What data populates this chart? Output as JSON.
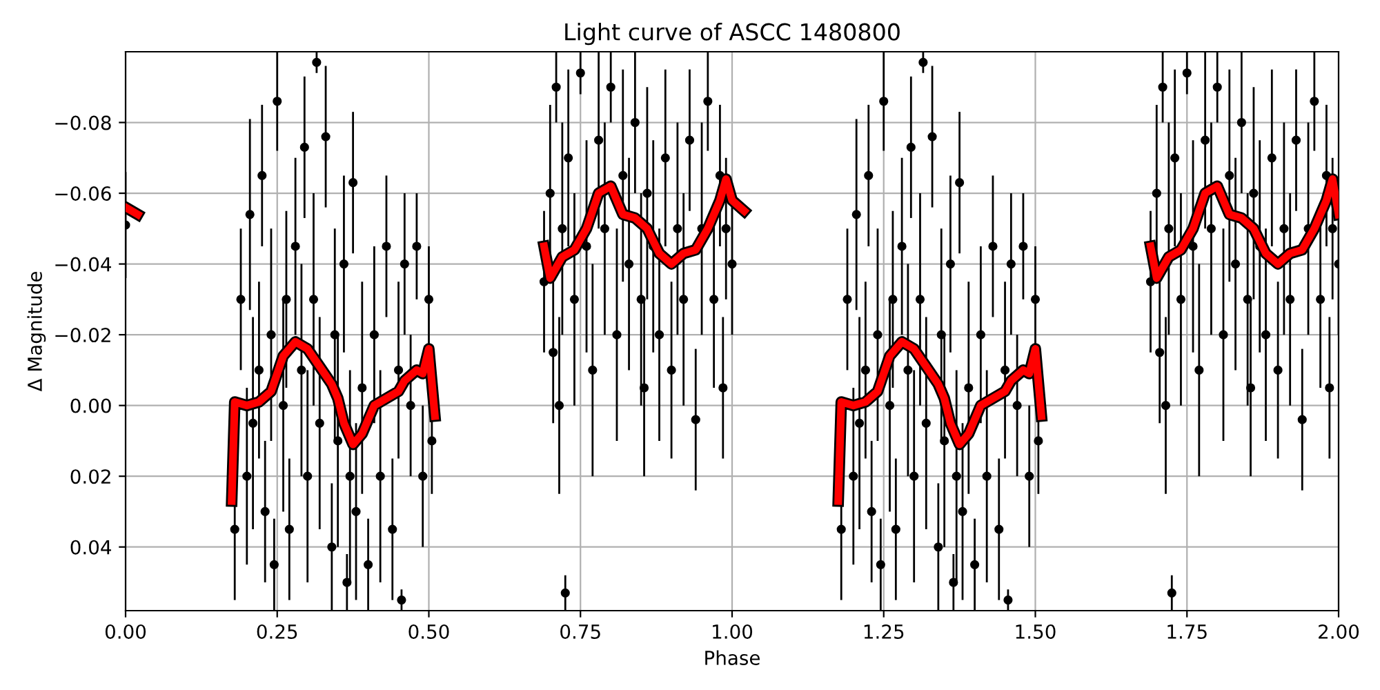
{
  "chart_data": {
    "type": "scatter",
    "title": "Light curve of ASCC 1480800",
    "xlabel": "Phase",
    "ylabel": "Δ Magnitude",
    "xlim": [
      0,
      2
    ],
    "xticks": [
      {
        "value": 0,
        "label": "0.00"
      },
      {
        "value": 0.25,
        "label": "0.25"
      },
      {
        "value": 0.5,
        "label": "0.50"
      },
      {
        "value": 0.75,
        "label": "0.75"
      },
      {
        "value": 1,
        "label": "1.00"
      },
      {
        "value": 1.25,
        "label": "1.25"
      },
      {
        "value": 1.5,
        "label": "1.50"
      },
      {
        "value": 1.75,
        "label": "1.75"
      },
      {
        "value": 2,
        "label": "2.00"
      }
    ],
    "ylim": [
      0.058,
      -0.1
    ],
    "yticks": [
      {
        "value": -0.08,
        "label": "−0.08"
      },
      {
        "value": -0.06,
        "label": "−0.06"
      },
      {
        "value": -0.04,
        "label": "−0.04"
      },
      {
        "value": -0.02,
        "label": "−0.02"
      },
      {
        "value": 0,
        "label": "0.00"
      },
      {
        "value": 0.02,
        "label": "0.02"
      },
      {
        "value": 0.04,
        "label": "0.04"
      }
    ],
    "grid": true,
    "series": [
      {
        "color": "#000000",
        "marker": "circle",
        "x": [
          0.0,
          0.18,
          0.19,
          0.2,
          0.205,
          0.21,
          0.22,
          0.225,
          0.23,
          0.24,
          0.245,
          0.25,
          0.26,
          0.265,
          0.27,
          0.28,
          0.29,
          0.295,
          0.3,
          0.31,
          0.315,
          0.32,
          0.33,
          0.34,
          0.345,
          0.35,
          0.36,
          0.365,
          0.37,
          0.375,
          0.38,
          0.39,
          0.4,
          0.41,
          0.42,
          0.43,
          0.44,
          0.45,
          0.455,
          0.46,
          0.47,
          0.48,
          0.49,
          0.5,
          0.505,
          0.69,
          0.7,
          0.705,
          0.71,
          0.715,
          0.72,
          0.725,
          0.73,
          0.74,
          0.75,
          0.76,
          0.77,
          0.78,
          0.79,
          0.8,
          0.81,
          0.82,
          0.83,
          0.84,
          0.85,
          0.855,
          0.86,
          0.87,
          0.88,
          0.89,
          0.9,
          0.91,
          0.92,
          0.93,
          0.94,
          0.95,
          0.96,
          0.97,
          0.98,
          0.985,
          0.99,
          1.0,
          1.18,
          1.19,
          1.2,
          1.205,
          1.21,
          1.22,
          1.225,
          1.23,
          1.24,
          1.245,
          1.25,
          1.26,
          1.265,
          1.27,
          1.28,
          1.29,
          1.295,
          1.3,
          1.31,
          1.315,
          1.32,
          1.33,
          1.34,
          1.345,
          1.35,
          1.36,
          1.365,
          1.37,
          1.375,
          1.38,
          1.39,
          1.4,
          1.41,
          1.42,
          1.43,
          1.44,
          1.45,
          1.455,
          1.46,
          1.47,
          1.48,
          1.49,
          1.5,
          1.505,
          1.69,
          1.7,
          1.705,
          1.71,
          1.715,
          1.72,
          1.725,
          1.73,
          1.74,
          1.75,
          1.76,
          1.77,
          1.78,
          1.79,
          1.8,
          1.81,
          1.82,
          1.83,
          1.84,
          1.85,
          1.855,
          1.86,
          1.87,
          1.88,
          1.89,
          1.9,
          1.91,
          1.92,
          1.93,
          1.94,
          1.95,
          1.96,
          1.97,
          1.98,
          1.985,
          1.99,
          2.0
        ],
        "values": [
          -0.051,
          0.035,
          -0.03,
          0.02,
          -0.054,
          0.005,
          -0.01,
          -0.065,
          0.03,
          -0.02,
          0.045,
          -0.086,
          0.0,
          -0.03,
          0.035,
          -0.045,
          -0.01,
          -0.073,
          0.02,
          -0.03,
          -0.097,
          0.005,
          -0.076,
          0.04,
          -0.02,
          0.01,
          -0.04,
          0.05,
          0.02,
          -0.063,
          0.03,
          -0.005,
          0.045,
          -0.02,
          0.02,
          -0.045,
          0.035,
          -0.01,
          0.055,
          -0.04,
          0.0,
          -0.045,
          0.02,
          -0.03,
          0.01,
          -0.035,
          -0.06,
          -0.015,
          -0.09,
          0.0,
          -0.05,
          0.053,
          -0.07,
          -0.03,
          -0.094,
          -0.045,
          -0.01,
          -0.075,
          -0.05,
          -0.09,
          -0.02,
          -0.065,
          -0.04,
          -0.08,
          -0.03,
          -0.005,
          -0.06,
          -0.045,
          -0.02,
          -0.07,
          -0.01,
          -0.05,
          -0.03,
          -0.075,
          0.004,
          -0.05,
          -0.086,
          -0.03,
          -0.065,
          -0.005,
          -0.05,
          -0.04,
          0.035,
          -0.03,
          0.02,
          -0.054,
          0.005,
          -0.01,
          -0.065,
          0.03,
          -0.02,
          0.045,
          -0.086,
          0.0,
          -0.03,
          0.035,
          -0.045,
          -0.01,
          -0.073,
          0.02,
          -0.03,
          -0.097,
          0.005,
          -0.076,
          0.04,
          -0.02,
          0.01,
          -0.04,
          0.05,
          0.02,
          -0.063,
          0.03,
          -0.005,
          0.045,
          -0.02,
          0.02,
          -0.045,
          0.035,
          -0.01,
          0.055,
          -0.04,
          0.0,
          -0.045,
          0.02,
          -0.03,
          0.01,
          -0.035,
          -0.06,
          -0.015,
          -0.09,
          0.0,
          -0.05,
          0.053,
          -0.07,
          -0.03,
          -0.094,
          -0.045,
          -0.01,
          -0.075,
          -0.05,
          -0.09,
          -0.02,
          -0.065,
          -0.04,
          -0.08,
          -0.03,
          -0.005,
          -0.06,
          -0.045,
          -0.02,
          -0.07,
          -0.01,
          -0.05,
          -0.03,
          -0.075,
          0.004,
          -0.05,
          -0.086,
          -0.03,
          -0.065,
          -0.005,
          -0.05,
          -0.04
        ],
        "errors": [
          0.015,
          0.02,
          0.02,
          0.025,
          0.027,
          0.03,
          0.025,
          0.02,
          0.02,
          0.03,
          0.013,
          0.014,
          0.03,
          0.025,
          0.02,
          0.025,
          0.03,
          0.02,
          0.03,
          0.03,
          0.003,
          0.03,
          0.02,
          0.018,
          0.03,
          0.03,
          0.025,
          0.008,
          0.03,
          0.02,
          0.025,
          0.03,
          0.013,
          0.025,
          0.03,
          0.02,
          0.02,
          0.025,
          0.003,
          0.02,
          0.02,
          0.015,
          0.02,
          0.015,
          0.015,
          0.02,
          0.025,
          0.02,
          0.01,
          0.025,
          0.03,
          0.005,
          0.025,
          0.03,
          0.006,
          0.03,
          0.03,
          0.025,
          0.03,
          0.01,
          0.03,
          0.03,
          0.03,
          0.02,
          0.03,
          0.025,
          0.03,
          0.03,
          0.03,
          0.025,
          0.025,
          0.03,
          0.03,
          0.02,
          0.02,
          0.03,
          0.014,
          0.025,
          0.02,
          0.02,
          0.02,
          0.02,
          0.02,
          0.02,
          0.025,
          0.027,
          0.03,
          0.025,
          0.02,
          0.02,
          0.03,
          0.013,
          0.014,
          0.03,
          0.025,
          0.02,
          0.025,
          0.03,
          0.02,
          0.03,
          0.03,
          0.003,
          0.03,
          0.02,
          0.018,
          0.03,
          0.03,
          0.025,
          0.008,
          0.03,
          0.02,
          0.025,
          0.03,
          0.013,
          0.025,
          0.03,
          0.02,
          0.02,
          0.025,
          0.003,
          0.02,
          0.02,
          0.015,
          0.02,
          0.015,
          0.015,
          0.02,
          0.025,
          0.02,
          0.01,
          0.025,
          0.03,
          0.005,
          0.025,
          0.03,
          0.006,
          0.03,
          0.03,
          0.025,
          0.03,
          0.01,
          0.03,
          0.03,
          0.03,
          0.02,
          0.03,
          0.025,
          0.03,
          0.03,
          0.03,
          0.025,
          0.025,
          0.03,
          0.03,
          0.02,
          0.02,
          0.03,
          0.014,
          0.025,
          0.02,
          0.02,
          0.02,
          0.02
        ]
      },
      {
        "type": "line",
        "color": "#ff0000",
        "line_style": "solid",
        "marker": "none",
        "x": [
          0.0,
          0.02,
          0.1,
          0.175,
          0.18,
          0.2,
          0.22,
          0.24,
          0.26,
          0.28,
          0.3,
          0.32,
          0.34,
          0.35,
          0.36,
          0.375,
          0.39,
          0.41,
          0.43,
          0.45,
          0.46,
          0.48,
          0.49,
          0.5,
          0.51,
          0.6,
          0.69,
          0.7,
          0.72,
          0.74,
          0.76,
          0.78,
          0.8,
          0.82,
          0.84,
          0.86,
          0.88,
          0.9,
          0.92,
          0.94,
          0.96,
          0.98,
          0.99,
          1.0,
          1.02,
          1.1,
          1.175,
          1.18,
          1.2,
          1.22,
          1.24,
          1.26,
          1.28,
          1.3,
          1.32,
          1.34,
          1.35,
          1.36,
          1.375,
          1.39,
          1.41,
          1.43,
          1.45,
          1.46,
          1.48,
          1.49,
          1.5,
          1.51,
          1.6,
          1.69,
          1.7,
          1.72,
          1.74,
          1.76,
          1.78,
          1.8,
          1.82,
          1.84,
          1.86,
          1.88,
          1.9,
          1.92,
          1.94,
          1.96,
          1.98,
          1.99,
          2.0
        ],
        "values": [
          -0.056,
          -0.054,
          null,
          0.027,
          -0.001,
          0.0,
          -0.001,
          -0.004,
          -0.014,
          -0.018,
          -0.016,
          -0.011,
          -0.006,
          -0.002,
          0.005,
          0.011,
          0.008,
          0.0,
          -0.002,
          -0.004,
          -0.007,
          -0.01,
          -0.009,
          -0.016,
          0.003,
          null,
          -0.045,
          -0.036,
          -0.042,
          -0.044,
          -0.05,
          -0.06,
          -0.062,
          -0.054,
          -0.053,
          -0.05,
          -0.043,
          -0.04,
          -0.043,
          -0.044,
          -0.05,
          -0.058,
          -0.064,
          -0.058,
          -0.055,
          null,
          0.027,
          -0.001,
          0.0,
          -0.001,
          -0.004,
          -0.014,
          -0.018,
          -0.016,
          -0.011,
          -0.006,
          -0.002,
          0.005,
          0.011,
          0.008,
          0.0,
          -0.002,
          -0.004,
          -0.007,
          -0.01,
          -0.009,
          -0.016,
          0.003,
          null,
          -0.045,
          -0.036,
          -0.042,
          -0.044,
          -0.05,
          -0.06,
          -0.062,
          -0.054,
          -0.053,
          -0.05,
          -0.043,
          -0.04,
          -0.043,
          -0.044,
          -0.05,
          -0.058,
          -0.064,
          -0.054
        ]
      }
    ]
  }
}
